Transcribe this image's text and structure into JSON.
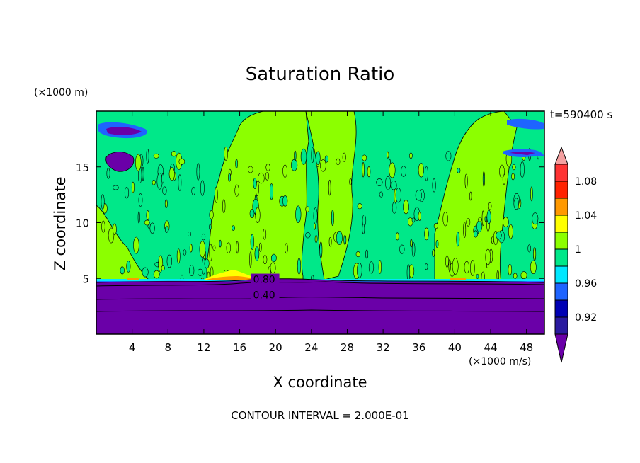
{
  "chart_data": {
    "type": "heatmap",
    "title": "Saturation Ratio",
    "xlabel": "X coordinate",
    "ylabel": "Z coordinate",
    "x_unit": "(×1000 m/s)",
    "y_unit": "(×1000 m)",
    "time_label": "t=590400 s",
    "footer": "CONTOUR INTERVAL = 2.000E-01",
    "xlim": [
      0,
      50
    ],
    "ylim": [
      0,
      20
    ],
    "x_ticks": [
      "4",
      "8",
      "12",
      "16",
      "20",
      "24",
      "28",
      "32",
      "36",
      "40",
      "44",
      "48"
    ],
    "x_tick_values": [
      4,
      8,
      12,
      16,
      20,
      24,
      28,
      32,
      36,
      40,
      44,
      48
    ],
    "y_ticks": [
      "5",
      "10",
      "15"
    ],
    "y_tick_values": [
      5,
      10,
      15
    ],
    "colorbar": {
      "levels": [
        0.92,
        0.94,
        0.96,
        0.98,
        1.0,
        1.02,
        1.04,
        1.06,
        1.08,
        1.1
      ],
      "labels": [
        "0.92",
        "0.96",
        "1",
        "1.04",
        "1.08"
      ],
      "label_values": [
        0.92,
        0.96,
        1.0,
        1.04,
        1.08
      ],
      "colors": [
        "#6a00a8",
        "#2a1aa0",
        "#0000b4",
        "#1e64ff",
        "#00e8ff",
        "#00e889",
        "#8cff00",
        "#ffff00",
        "#ff9900",
        "#ff2200",
        "#ff3333",
        "#f4a0a0"
      ]
    },
    "contour_labels": [
      {
        "text": "0.80",
        "x": 17.5,
        "z": 4.6
      },
      {
        "text": "0.40",
        "x": 17.5,
        "z": 3.2
      }
    ],
    "regions": {
      "lower_layer_top_z": 4.8,
      "lower_layer_value": "< 0.92",
      "upper_background_value": "0.98 - 1.0",
      "moist_columns_value": "1.0 - 1.02",
      "moist_columns_x": [
        [
          13,
          22
        ],
        [
          22,
          26
        ],
        [
          38,
          45
        ]
      ]
    }
  }
}
